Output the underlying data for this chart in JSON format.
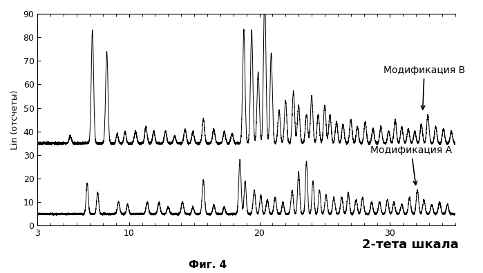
{
  "xlabel_right": "2-тета шкала",
  "ylabel": "Lin (отсчеты)",
  "caption": "Фиг. 4",
  "label_B": "Модификация В",
  "label_A": "Модификация А",
  "xmin": 3,
  "xmax": 35,
  "ymin": 0,
  "ymax": 90,
  "baseline_B": 35,
  "baseline_A": 5,
  "background_color": "#ffffff",
  "line_color": "#000000",
  "xticks": [
    3,
    10,
    20,
    30
  ],
  "yticks": [
    0,
    10,
    20,
    30,
    40,
    50,
    60,
    70,
    80,
    90
  ]
}
